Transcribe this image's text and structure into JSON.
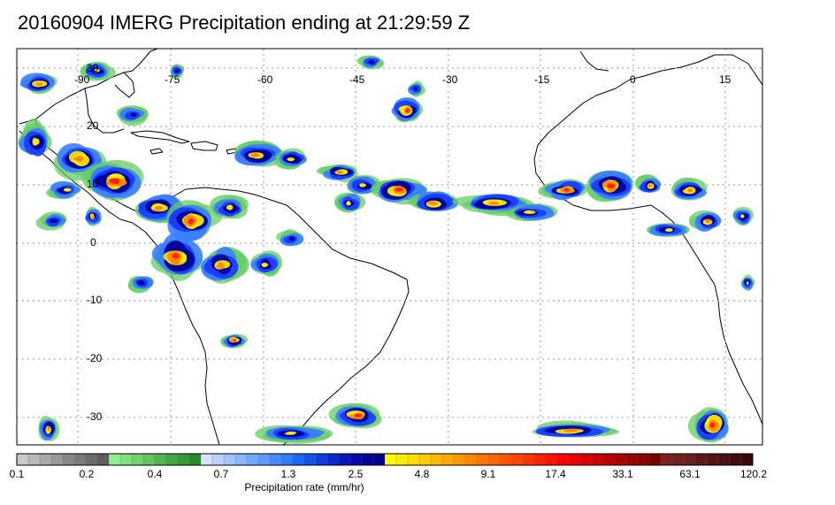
{
  "title": "20160904 IMERG Precipitation ending at 21:29:59 Z",
  "map": {
    "lon_labels": [
      "-90",
      "-75",
      "-60",
      "-45",
      "-30",
      "-15",
      "0",
      "15"
    ],
    "lat_labels": [
      "30",
      "20",
      "10",
      "0",
      "-10",
      "-20",
      "-30"
    ],
    "colors": {
      "coastline": "#000000",
      "grid": "#9a9a9a",
      "frame": "#000000"
    }
  },
  "colorbar": {
    "title": "Precipitation rate (mm/hr)",
    "tick_labels": [
      "0.1",
      "0.2",
      "0.4",
      "0.7",
      "1.3",
      "2.5",
      "4.8",
      "9.1",
      "17.4",
      "33.1",
      "63.1",
      "120.2"
    ],
    "colors": [
      "#c8c8c8",
      "#b8b8b8",
      "#a8a8a8",
      "#989898",
      "#888888",
      "#7a7a7a",
      "#6c6c6c",
      "#5e5e5e",
      "#90ee90",
      "#7fe07f",
      "#6fd26f",
      "#5fc45f",
      "#50b650",
      "#42a842",
      "#349a34",
      "#268c26",
      "#d6e0ff",
      "#bcd2ff",
      "#a4c4ff",
      "#8cb6ff",
      "#74a8ff",
      "#5c9aff",
      "#448cff",
      "#2c7eff",
      "#1a66ff",
      "#1450ee",
      "#0e3cdd",
      "#0828cc",
      "#0616bb",
      "#0408aa",
      "#020099",
      "#000088",
      "#ffff00",
      "#ffee00",
      "#ffdd00",
      "#ffcc00",
      "#ffbb00",
      "#ffaa00",
      "#ff9900",
      "#ff8800",
      "#ff7700",
      "#ff6600",
      "#ff5500",
      "#ff4400",
      "#ff3300",
      "#ff2200",
      "#ff1100",
      "#ff0000",
      "#ee0000",
      "#dd0000",
      "#cc0000",
      "#bb0000",
      "#aa0000",
      "#990000",
      "#880000",
      "#770000",
      "#7a2020",
      "#702020",
      "#662020",
      "#5c1818",
      "#521414",
      "#481010",
      "#400c0c",
      "#380808"
    ]
  }
}
